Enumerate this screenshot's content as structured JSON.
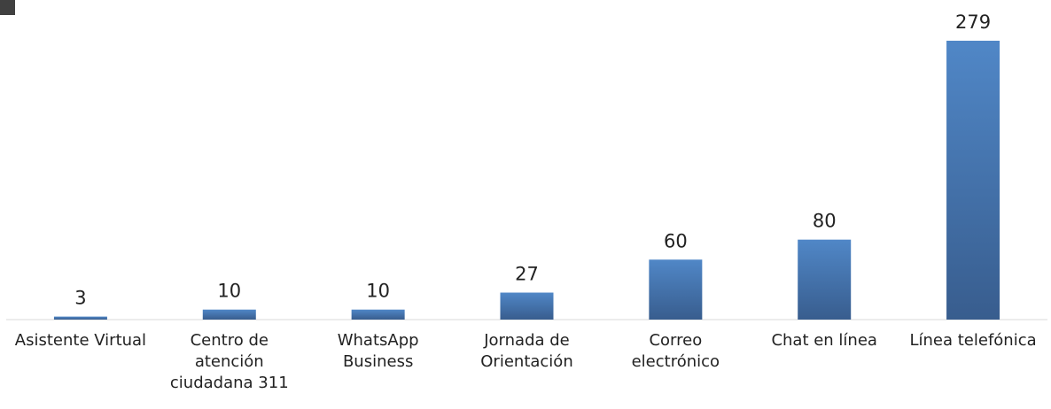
{
  "chart_data": {
    "type": "bar",
    "categories": [
      "Asistente Virtual",
      "Centro de atención ciudadana 311",
      "WhatsApp Business",
      "Jornada de Orientación",
      "Correo electrónico",
      "Chat en línea",
      "Línea telefónica"
    ],
    "values": [
      3,
      10,
      10,
      27,
      60,
      80,
      279
    ],
    "color": "#4a7ab5",
    "ylim": [
      0,
      279
    ]
  }
}
